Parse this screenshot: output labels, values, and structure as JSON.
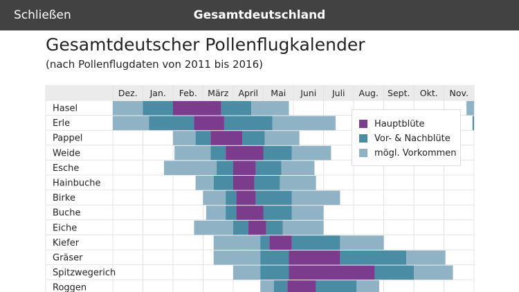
{
  "topbar": {
    "close_label": "Schließen",
    "title": "Gesamtdeutschland"
  },
  "page": {
    "title": "Gesamtdeutscher Pollenflugkalender",
    "subtitle": "(nach Pollenflugdaten von 2011 bis 2016)"
  },
  "colors": {
    "main": "#7b3c8e",
    "pre_post": "#4a8ca3",
    "possible": "#8fb3c4",
    "header_bg": "#ebebeb",
    "grid": "#e3e3e3"
  },
  "legend": {
    "main": "Hauptblüte",
    "pre_post": "Vor- & Nachblüte",
    "possible": "mögl. Vorkommen"
  },
  "chart_data": {
    "type": "table",
    "months": [
      "Dez.",
      "Jan.",
      "Feb.",
      "März",
      "April",
      "Mai",
      "Juni",
      "Juli",
      "Aug.",
      "Sept.",
      "Okt.",
      "Nov."
    ],
    "plants": [
      {
        "name": "Hasel",
        "segments": [
          [
            0,
            1,
            "possible"
          ],
          [
            1,
            2,
            "pre_post"
          ],
          [
            2,
            3.6,
            "main"
          ],
          [
            3.6,
            4.6,
            "pre_post"
          ],
          [
            4.6,
            5.85,
            "possible"
          ],
          [
            11.75,
            12.6,
            "possible"
          ]
        ]
      },
      {
        "name": "Erle",
        "segments": [
          [
            0,
            1.2,
            "possible"
          ],
          [
            1.2,
            2.7,
            "pre_post"
          ],
          [
            2.7,
            3.7,
            "main"
          ],
          [
            3.7,
            5.3,
            "pre_post"
          ],
          [
            5.3,
            7.4,
            "possible"
          ],
          [
            11.95,
            12.6,
            "pre_post"
          ]
        ]
      },
      {
        "name": "Pappel",
        "segments": [
          [
            2,
            2.75,
            "possible"
          ],
          [
            2.75,
            3.25,
            "pre_post"
          ],
          [
            3.25,
            4.3,
            "main"
          ],
          [
            4.3,
            5.05,
            "pre_post"
          ],
          [
            5.05,
            6.2,
            "possible"
          ]
        ]
      },
      {
        "name": "Weide",
        "segments": [
          [
            2.05,
            3.25,
            "possible"
          ],
          [
            3.25,
            3.75,
            "pre_post"
          ],
          [
            3.75,
            5,
            "main"
          ],
          [
            5,
            5.95,
            "pre_post"
          ],
          [
            5.95,
            7.25,
            "possible"
          ]
        ]
      },
      {
        "name": "Esche",
        "segments": [
          [
            1.7,
            3.45,
            "possible"
          ],
          [
            3.45,
            4,
            "pre_post"
          ],
          [
            4,
            4.75,
            "main"
          ],
          [
            4.75,
            5.6,
            "pre_post"
          ],
          [
            5.6,
            6.7,
            "possible"
          ]
        ]
      },
      {
        "name": "Hainbuche",
        "segments": [
          [
            2.75,
            3.35,
            "possible"
          ],
          [
            3.35,
            4,
            "pre_post"
          ],
          [
            4,
            4.7,
            "main"
          ],
          [
            4.7,
            5.55,
            "pre_post"
          ],
          [
            5.55,
            6.75,
            "possible"
          ]
        ]
      },
      {
        "name": "Birke",
        "segments": [
          [
            3,
            3.75,
            "possible"
          ],
          [
            3.75,
            4.1,
            "pre_post"
          ],
          [
            4.1,
            4.75,
            "main"
          ],
          [
            4.75,
            5.95,
            "pre_post"
          ],
          [
            5.95,
            7.55,
            "possible"
          ]
        ]
      },
      {
        "name": "Buche",
        "segments": [
          [
            3.1,
            3.75,
            "possible"
          ],
          [
            3.75,
            4.1,
            "pre_post"
          ],
          [
            4.1,
            5,
            "main"
          ],
          [
            5,
            5.95,
            "pre_post"
          ],
          [
            5.95,
            7,
            "possible"
          ]
        ]
      },
      {
        "name": "Eiche",
        "segments": [
          [
            2.7,
            4,
            "possible"
          ],
          [
            4,
            4.5,
            "pre_post"
          ],
          [
            4.5,
            5.1,
            "main"
          ],
          [
            5.1,
            5.65,
            "pre_post"
          ],
          [
            5.65,
            7,
            "possible"
          ]
        ]
      },
      {
        "name": "Kiefer",
        "segments": [
          [
            3.35,
            4.9,
            "possible"
          ],
          [
            4.9,
            5.2,
            "pre_post"
          ],
          [
            5.2,
            5.95,
            "main"
          ],
          [
            5.95,
            7.55,
            "pre_post"
          ],
          [
            7.55,
            9,
            "possible"
          ]
        ]
      },
      {
        "name": "Gräser",
        "segments": [
          [
            3.35,
            4.9,
            "possible"
          ],
          [
            4.9,
            5.85,
            "pre_post"
          ],
          [
            5.85,
            7.55,
            "main"
          ],
          [
            7.55,
            9.75,
            "pre_post"
          ],
          [
            9.75,
            11.05,
            "possible"
          ]
        ]
      },
      {
        "name": "Spitzwegerich",
        "segments": [
          [
            4,
            4.9,
            "possible"
          ],
          [
            4.9,
            5.85,
            "pre_post"
          ],
          [
            5.85,
            8.7,
            "main"
          ],
          [
            8.7,
            10,
            "pre_post"
          ],
          [
            10,
            11.3,
            "possible"
          ]
        ]
      },
      {
        "name": "Roggen",
        "segments": [
          [
            4.9,
            5.35,
            "possible"
          ],
          [
            5.35,
            5.8,
            "pre_post"
          ],
          [
            5.8,
            6.75,
            "main"
          ],
          [
            6.75,
            8.1,
            "pre_post"
          ],
          [
            8.1,
            8.85,
            "possible"
          ]
        ]
      }
    ]
  }
}
